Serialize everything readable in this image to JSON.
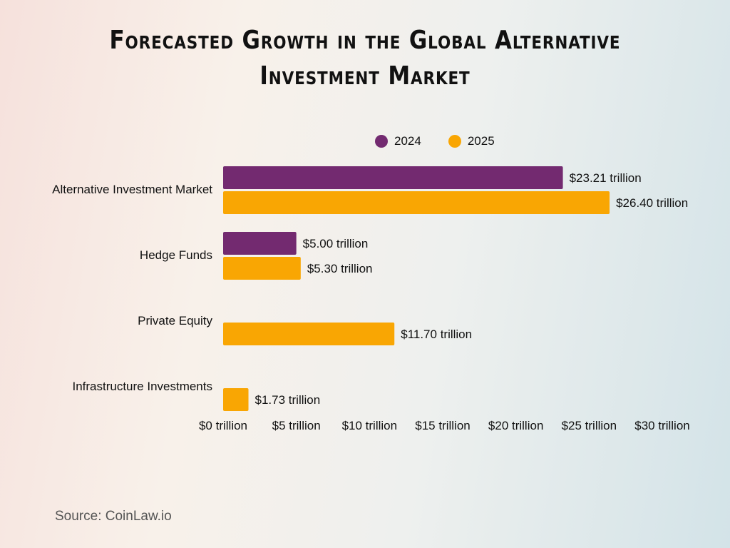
{
  "title": "Forecasted Growth in the Global Alternative Investment Market",
  "source": "Source: CoinLaw.io",
  "chart_data": {
    "type": "bar",
    "orientation": "horizontal",
    "title": "Forecasted Growth in the Global Alternative Investment Market",
    "categories": [
      "Alternative Investment Market",
      "Hedge Funds",
      "Private Equity",
      "Infrastructure Investments"
    ],
    "series": [
      {
        "name": "2024",
        "color": "#732a70",
        "values": [
          23.21,
          5.0,
          null,
          null
        ],
        "labels": [
          "$23.21 trillion",
          "$5.00 trillion",
          null,
          null
        ]
      },
      {
        "name": "2025",
        "color": "#f9a603",
        "values": [
          26.4,
          5.3,
          11.7,
          1.73
        ],
        "labels": [
          "$26.40 trillion",
          "$5.30 trillion",
          "$11.70 trillion",
          "$1.73 trillion"
        ]
      }
    ],
    "xlim": [
      0,
      30
    ],
    "xticks": [
      0,
      5,
      10,
      15,
      20,
      25,
      30
    ],
    "xtick_labels": [
      "$0 trillion",
      "$5 trillion",
      "$10 trillion",
      "$15 trillion",
      "$20 trillion",
      "$25 trillion",
      "$30 trillion"
    ],
    "xlabel": "",
    "ylabel": "",
    "grid": false,
    "legend_position": "top"
  }
}
